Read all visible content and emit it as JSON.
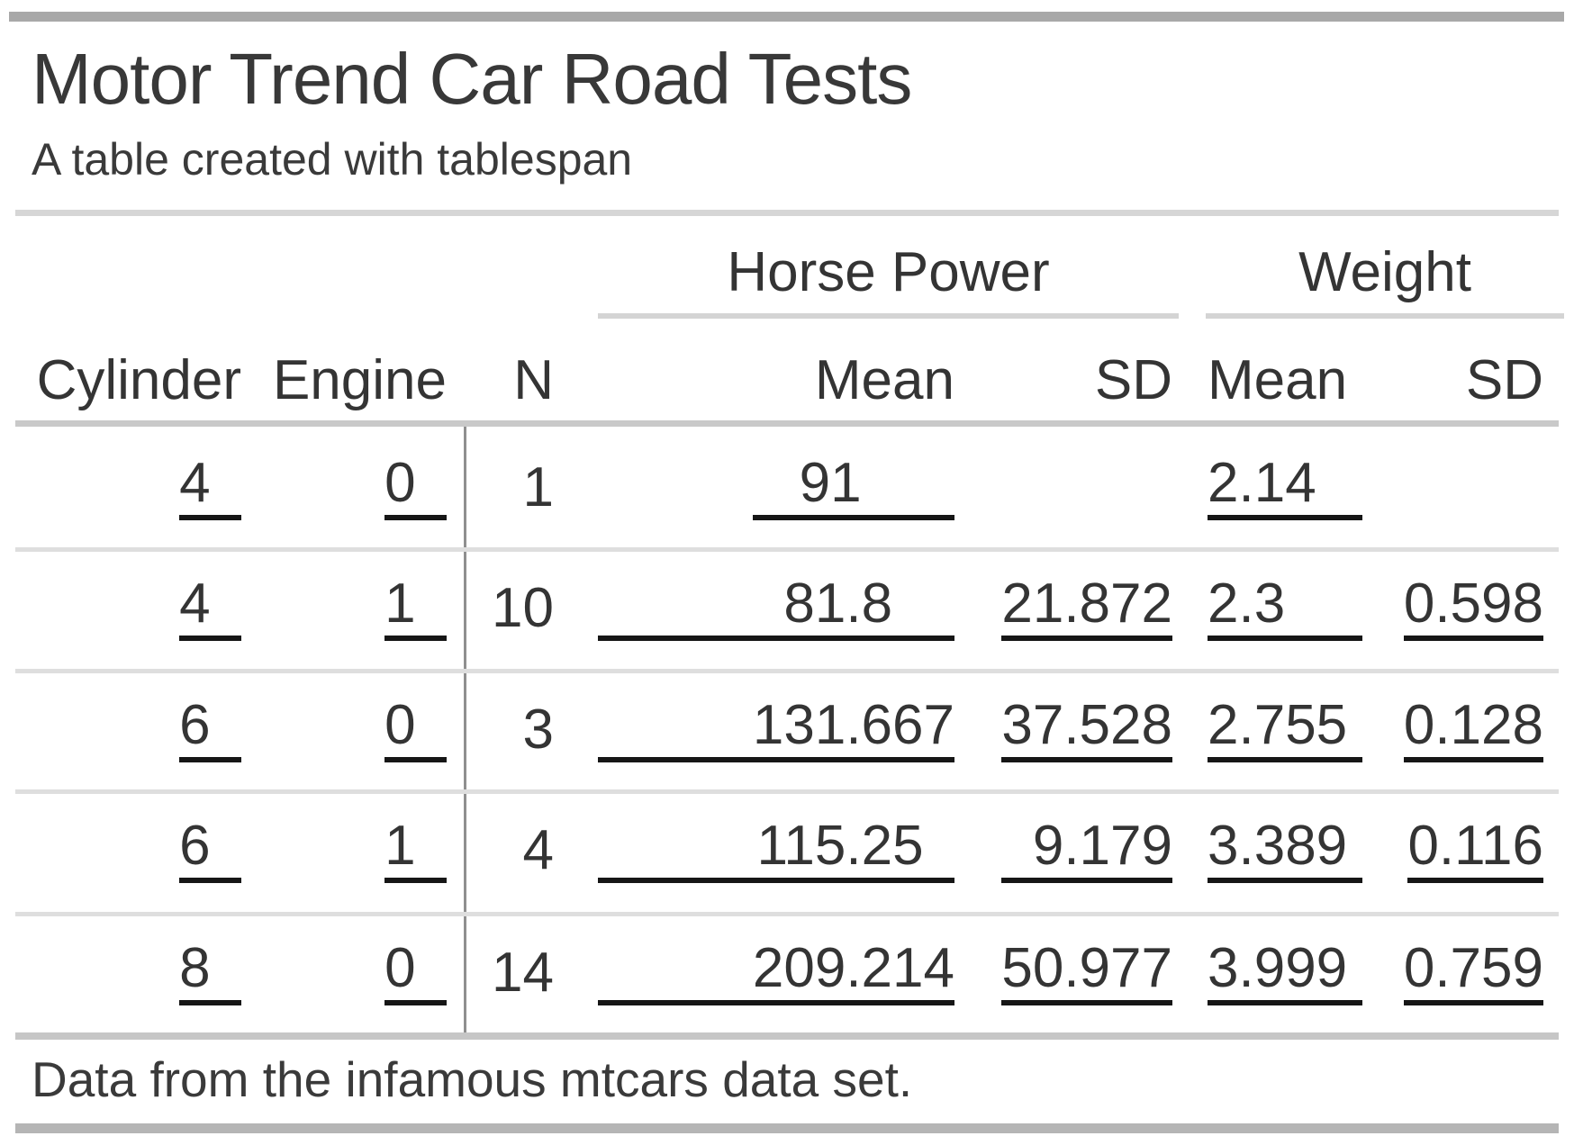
{
  "header": {
    "title": "Motor Trend Car Road Tests",
    "subtitle": "A table created with tablespan"
  },
  "spanners": {
    "horse_power": "Horse Power",
    "weight": "Weight"
  },
  "columns": [
    "Cylinder",
    "Engine",
    "N",
    "Mean",
    "SD",
    "Mean",
    "SD"
  ],
  "table": {
    "rows": [
      {
        "cells": [
          {
            "v": "4",
            "u": true,
            "pr": 2
          },
          {
            "v": "0",
            "u": true,
            "pr": 2
          },
          {
            "v": "1"
          },
          {
            "v": "91",
            "u": true,
            "pl": 3,
            "pr": 6
          },
          {
            "v": ""
          },
          {
            "v": "2.14",
            "u": true,
            "pr": 3
          },
          {
            "v": ""
          }
        ]
      },
      {
        "cells": [
          {
            "v": "4",
            "u": true,
            "pr": 2
          },
          {
            "v": "1",
            "u": true,
            "pr": 2
          },
          {
            "v": "10"
          },
          {
            "v": "81.8",
            "u": true,
            "wide": true,
            "pr": 4
          },
          {
            "v": "21.872",
            "u": true
          },
          {
            "v": "2.3",
            "u": true,
            "pr": 5
          },
          {
            "v": "0.598",
            "u": true
          }
        ]
      },
      {
        "cells": [
          {
            "v": "6",
            "u": true,
            "pr": 2
          },
          {
            "v": "0",
            "u": true,
            "pr": 2
          },
          {
            "v": "3"
          },
          {
            "v": "131.667",
            "u": true,
            "wide": true
          },
          {
            "v": "37.528",
            "u": true
          },
          {
            "v": "2.755",
            "u": true,
            "pr": 1
          },
          {
            "v": "0.128",
            "u": true
          }
        ]
      },
      {
        "cells": [
          {
            "v": "6",
            "u": true,
            "pr": 2
          },
          {
            "v": "1",
            "u": true,
            "pr": 2
          },
          {
            "v": "4"
          },
          {
            "v": "115.25",
            "u": true,
            "wide": true,
            "pr": 2
          },
          {
            "v": "9.179",
            "u": true,
            "pl": 2
          },
          {
            "v": "3.389",
            "u": true,
            "pr": 1
          },
          {
            "v": "0.116",
            "u": true
          }
        ]
      },
      {
        "cells": [
          {
            "v": "8",
            "u": true,
            "pr": 2
          },
          {
            "v": "0",
            "u": true,
            "pr": 2
          },
          {
            "v": "14"
          },
          {
            "v": "209.214",
            "u": true,
            "wide": true
          },
          {
            "v": "50.977",
            "u": true
          },
          {
            "v": "3.999",
            "u": true,
            "pr": 1
          },
          {
            "v": "0.759",
            "u": true
          }
        ]
      }
    ]
  },
  "footer": {
    "note": "Data from the infamous mtcars data set."
  }
}
